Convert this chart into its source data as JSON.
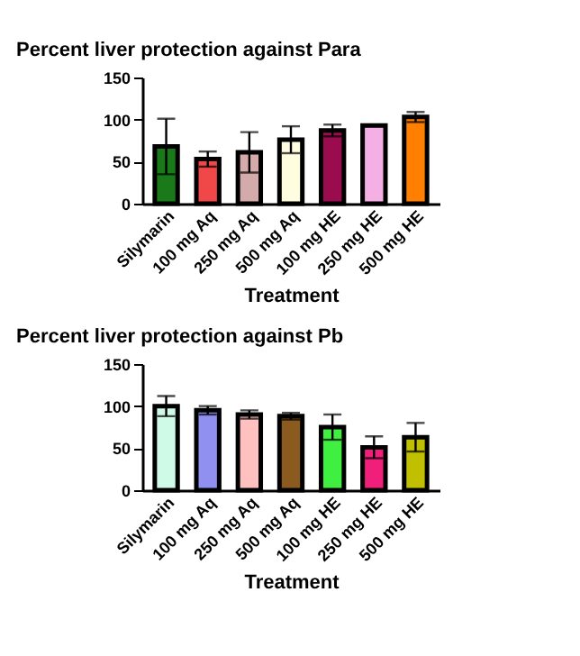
{
  "chart_data": [
    {
      "type": "bar",
      "title": "Percent liver protection against Para",
      "xlabel": "Treatment",
      "categories": [
        "Silymarin",
        "100 mg Aq",
        "250 mg Aq",
        "500 mg Aq",
        "100 mg HE",
        "250 mg HE",
        "500 mg HE"
      ],
      "values": [
        68,
        53,
        61,
        76,
        87,
        93,
        103
      ],
      "errors": [
        33,
        9,
        24,
        16,
        7,
        1,
        6
      ],
      "colors": [
        "#1a7a1a",
        "#f04848",
        "#d4aaaa",
        "#fffde0",
        "#9b0c4f",
        "#f4b0e4",
        "#ff8000"
      ],
      "ylim": [
        0,
        150
      ],
      "yticks": [
        0,
        50,
        100,
        150
      ],
      "grid": false
    },
    {
      "type": "bar",
      "title": "Percent liver protection against Pb",
      "xlabel": "Treatment",
      "categories": [
        "Silymarin",
        "100 mg Aq",
        "250 mg Aq",
        "500 mg Aq",
        "100 mg HE",
        "250 mg HE",
        "500 mg HE"
      ],
      "values": [
        100,
        95,
        90,
        88,
        75,
        51,
        63
      ],
      "errors": [
        12,
        5,
        5,
        4,
        15,
        13,
        17
      ],
      "colors": [
        "#d0fae8",
        "#9090f0",
        "#ffc0c0",
        "#8b5a1e",
        "#40f040",
        "#f0207a",
        "#c0c000"
      ],
      "ylim": [
        0,
        150
      ],
      "yticks": [
        0,
        50,
        100,
        150
      ],
      "grid": false
    }
  ]
}
